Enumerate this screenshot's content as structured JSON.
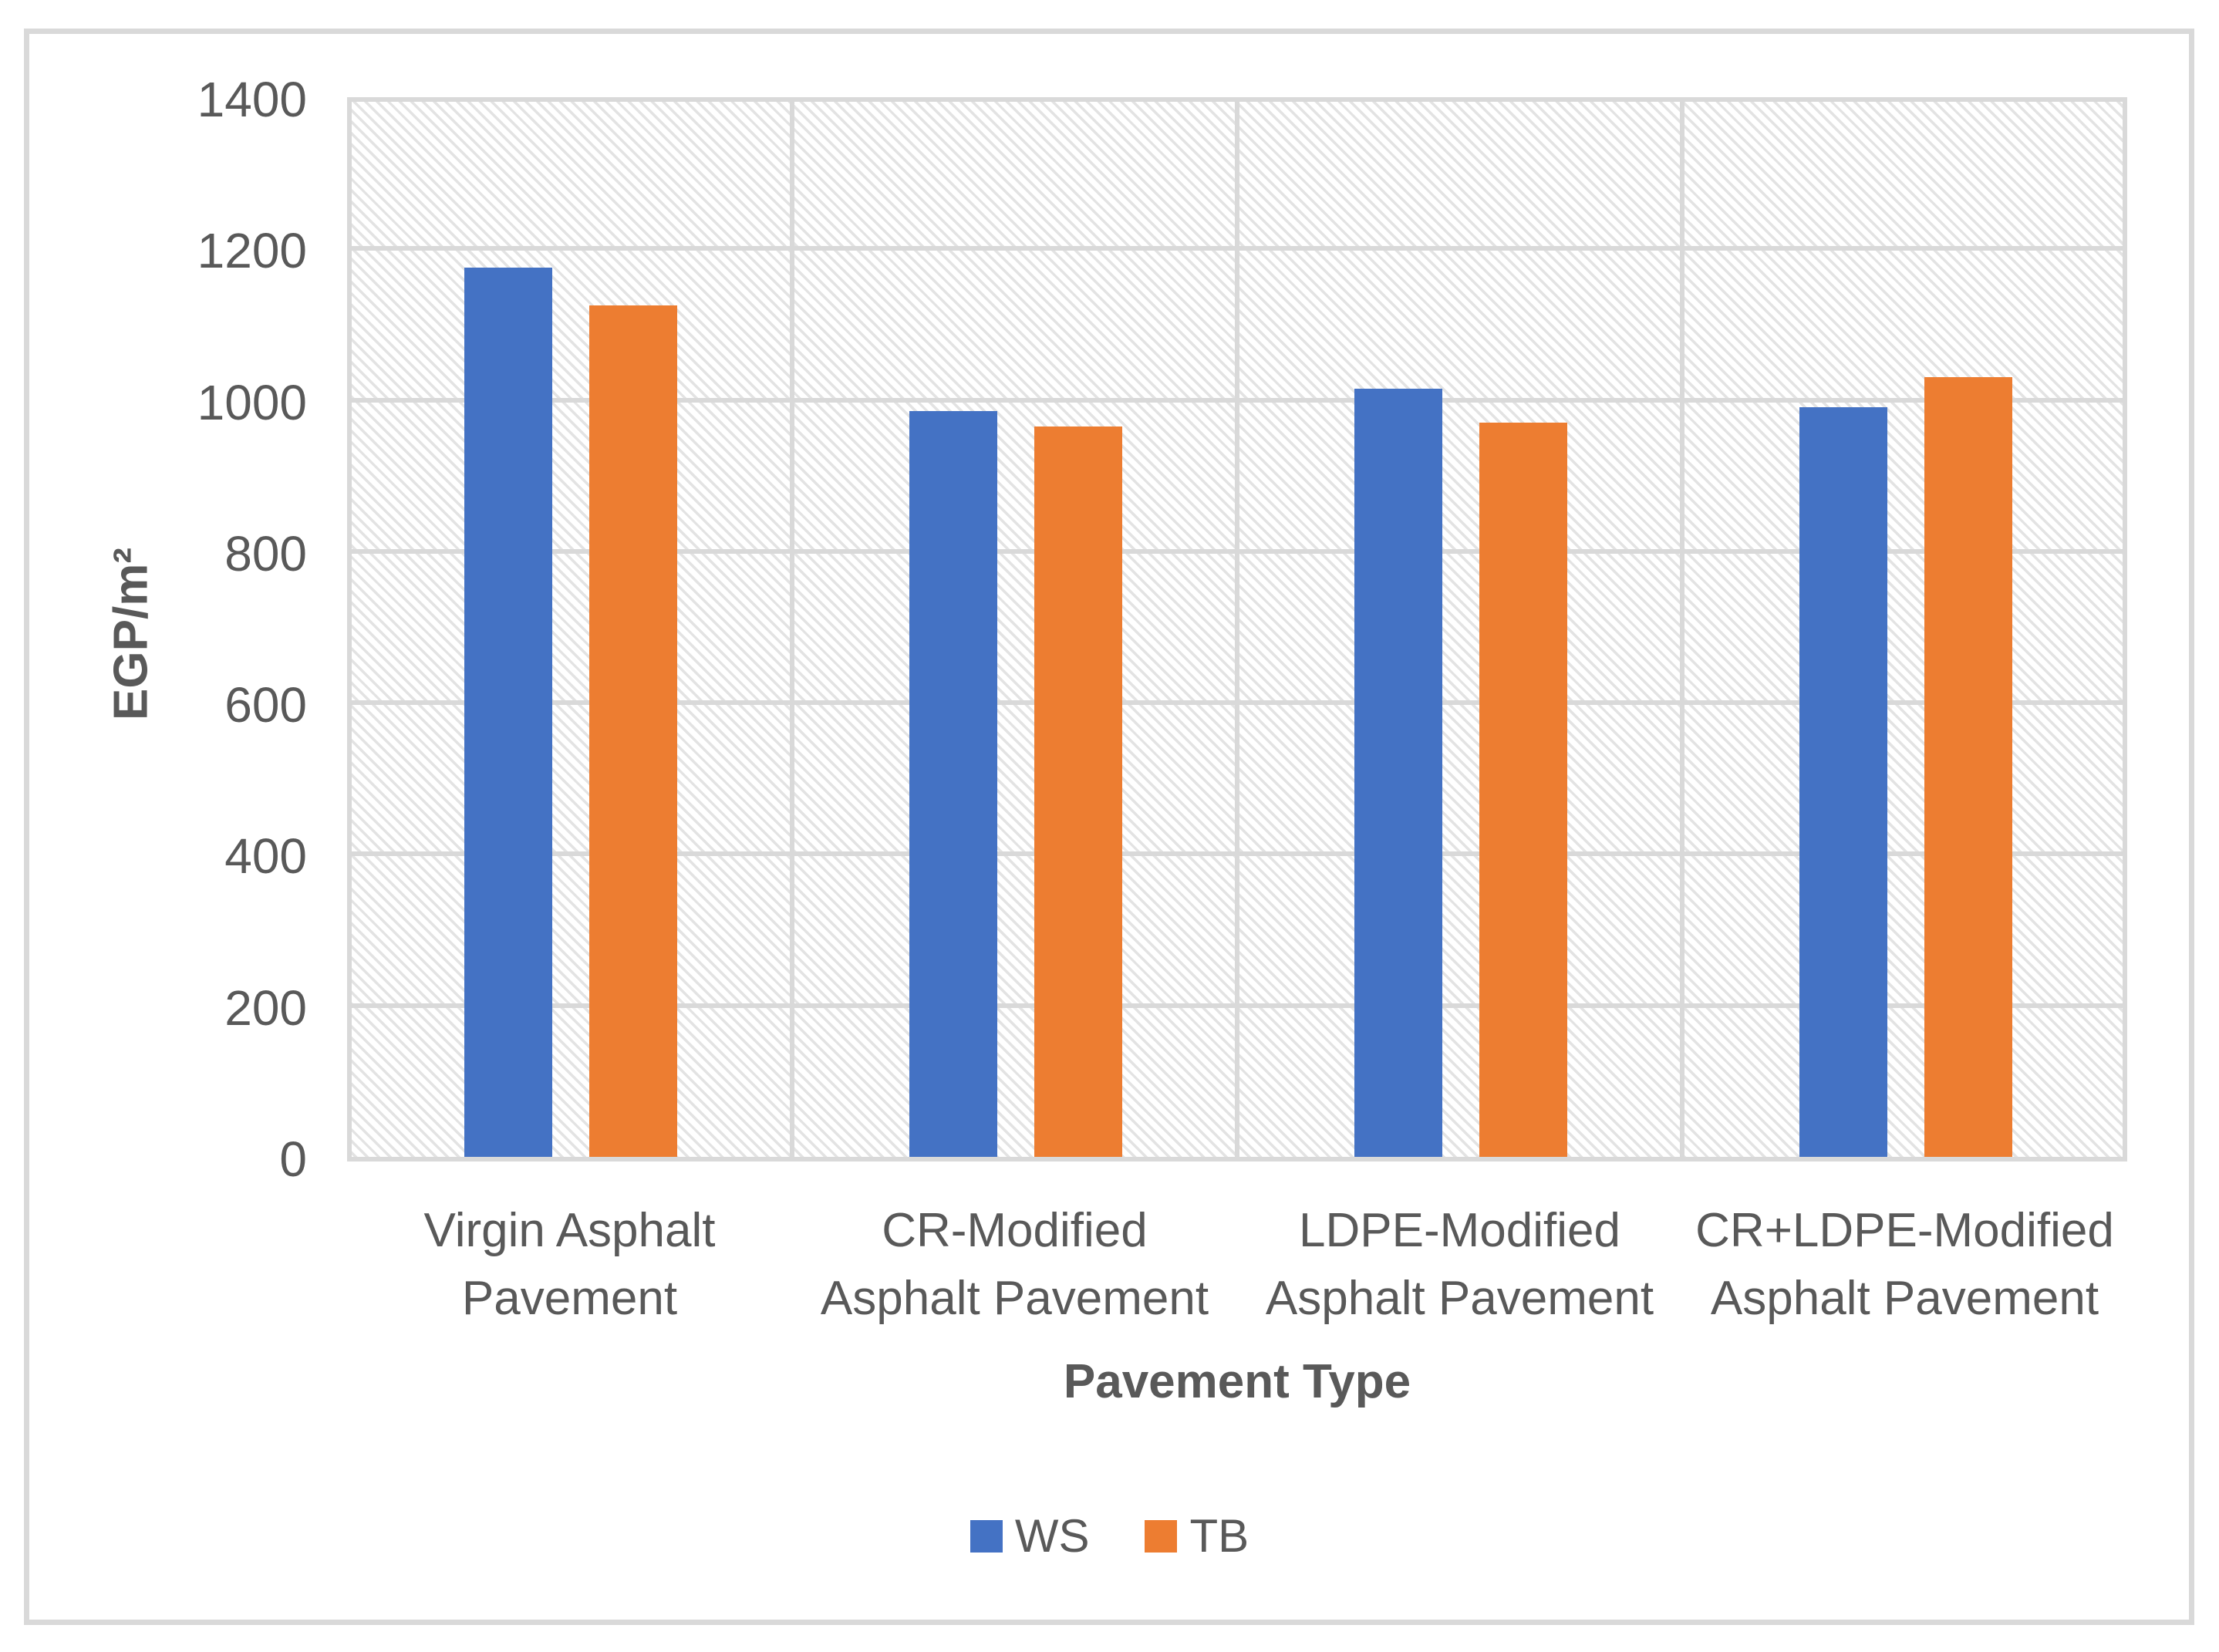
{
  "chart_data": {
    "type": "bar",
    "title": "",
    "categories": [
      "Virgin Asphalt\nPavement",
      "CR-Modified\nAsphalt Pavement",
      "LDPE-Modified\nAsphalt Pavement",
      "CR+LDPE-Modified\nAsphalt Pavement"
    ],
    "series": [
      {
        "name": "WS",
        "color": "#4472C4",
        "values": [
          1175,
          985,
          1015,
          990
        ]
      },
      {
        "name": "TB",
        "color": "#ED7D31",
        "values": [
          1125,
          965,
          970,
          1030
        ]
      }
    ],
    "xlabel": "Pavement Type",
    "ylabel": "EGP/m²",
    "ylim": [
      0,
      1400
    ],
    "ytick_step": 200,
    "yticks": [
      0,
      200,
      400,
      600,
      800,
      1000,
      1200,
      1400
    ],
    "grid": "on",
    "legend_position": "bottom",
    "plot_pattern": "light-downward-diagonal-hatch"
  },
  "style": {
    "grid_color": "#D9D9D9",
    "border_color": "#D9D9D9",
    "axis_text_color": "#595959",
    "hatch_color": "#E3E3E3",
    "background": "#FFFFFF"
  }
}
